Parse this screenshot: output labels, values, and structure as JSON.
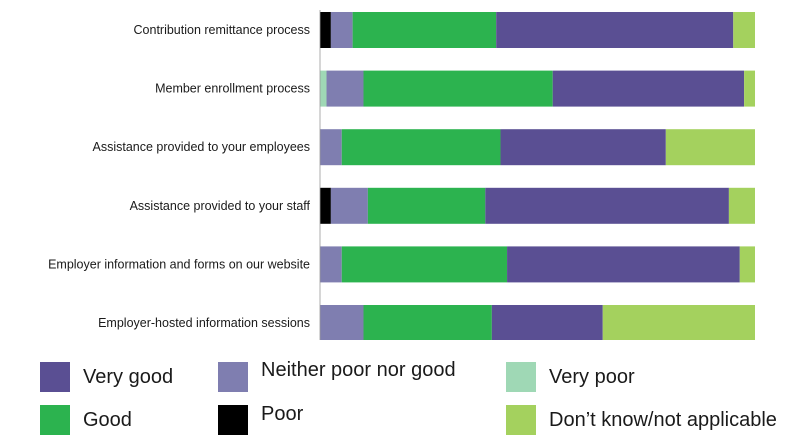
{
  "chart_data": {
    "type": "bar",
    "orientation": "horizontal",
    "stacked": true,
    "categories": [
      "Contribution remittance process",
      "Member enrollment process",
      "Assistance provided to your employees",
      "Assistance provided to your staff",
      "Employer information and forms on our website",
      "Employer-hosted information sessions"
    ],
    "series": [
      {
        "name": "Poor",
        "color": "#000000",
        "values": [
          2.5,
          0,
          0,
          2.5,
          0,
          0
        ]
      },
      {
        "name": "Very poor",
        "color": "#9fd8b5",
        "values": [
          0,
          1.5,
          0,
          0,
          0,
          0
        ]
      },
      {
        "name": "Neither poor nor good",
        "color": "#7f7eb0",
        "values": [
          5,
          8.5,
          5,
          8.5,
          5,
          10
        ]
      },
      {
        "name": "Good",
        "color": "#2cb34f",
        "values": [
          33,
          43.5,
          36.5,
          27,
          38,
          29.5
        ]
      },
      {
        "name": "Very good",
        "color": "#5a4f93",
        "values": [
          54.5,
          44,
          38,
          56,
          53.5,
          25.5
        ]
      },
      {
        "name": "Don’t know/not applicable",
        "color": "#a4d15e",
        "values": [
          5,
          2.5,
          20.5,
          6,
          3.5,
          35
        ]
      }
    ],
    "xlim": [
      0,
      100
    ],
    "x_ticks": [
      "0%",
      "20%",
      "40%",
      "60%",
      "80%",
      "100%"
    ],
    "title": "",
    "xlabel": "",
    "ylabel": "",
    "grid": false,
    "legend_position": "bottom"
  },
  "legend": [
    {
      "label": "Very good",
      "color": "#5a4f93"
    },
    {
      "label": "Neither poor nor good",
      "color": "#7f7eb0"
    },
    {
      "label": "Very poor",
      "color": "#9fd8b5"
    },
    {
      "label": "Good",
      "color": "#2cb34f"
    },
    {
      "label": "Poor",
      "color": "#000000"
    },
    {
      "label": "Don’t know/not applicable",
      "color": "#a4d15e"
    }
  ]
}
